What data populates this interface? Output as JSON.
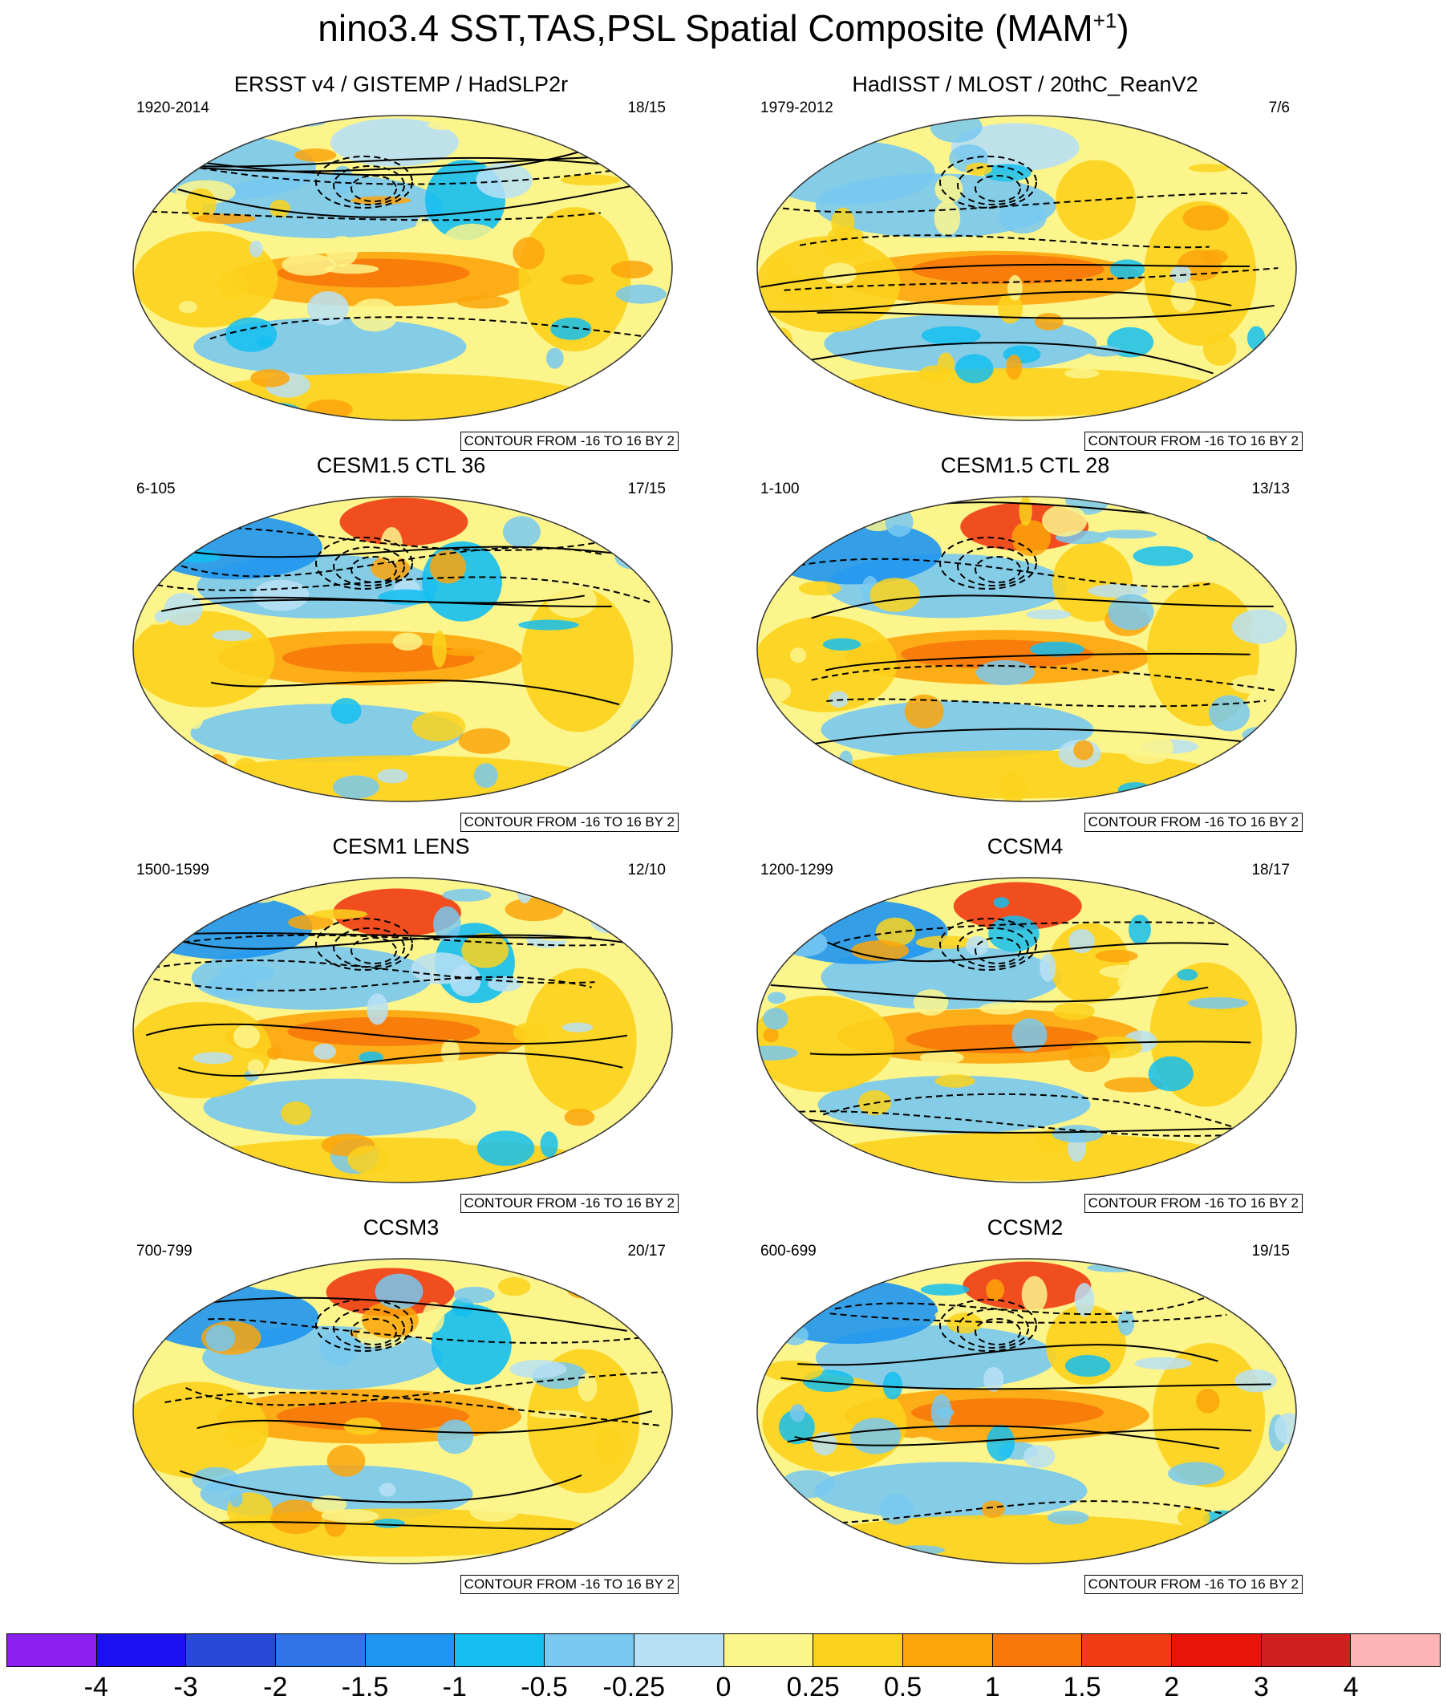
{
  "title": "nino3.4 SST,TAS,PSL Spatial Composite (MAM",
  "title_sup": "+1",
  "title_end": ")",
  "panels": [
    {
      "title": "ERSST v4 / GISTEMP / HadSLP2r",
      "years": "1920-2014",
      "count": "18/15",
      "note": "CONTOUR FROM -16 TO 16 BY 2"
    },
    {
      "title": "HadISST / MLOST / 20thC_ReanV2",
      "years": "1979-2012",
      "count": "7/6",
      "note": "CONTOUR FROM -16 TO 16 BY 2"
    },
    {
      "title": "CESM1.5 CTL 36",
      "years": "6-105",
      "count": "17/15",
      "note": "CONTOUR FROM -16 TO 16 BY 2"
    },
    {
      "title": "CESM1.5 CTL 28",
      "years": "1-100",
      "count": "13/13",
      "note": "CONTOUR FROM -16 TO 16 BY 2"
    },
    {
      "title": "CESM1 LENS",
      "years": "1500-1599",
      "count": "12/10",
      "note": "CONTOUR FROM -16 TO 16 BY 2"
    },
    {
      "title": "CCSM4",
      "years": "1200-1299",
      "count": "18/17",
      "note": "CONTOUR FROM -16 TO 16 BY 2"
    },
    {
      "title": "CCSM3",
      "years": "700-799",
      "count": "20/17",
      "note": "CONTOUR FROM -16 TO 16 BY 2"
    },
    {
      "title": "CCSM2",
      "years": "600-699",
      "count": "19/15",
      "note": "CONTOUR FROM -16 TO 16 BY 2"
    }
  ],
  "colorbar": {
    "labels": [
      "-4",
      "-3",
      "-2",
      "-1.5",
      "-1",
      "-0.5",
      "-0.25",
      "0",
      "0.25",
      "0.5",
      "1",
      "1.5",
      "2",
      "3",
      "4"
    ],
    "colors": [
      "#8a1ff0",
      "#1a10f0",
      "#2848d8",
      "#2e73e8",
      "#1e96f0",
      "#14bef0",
      "#78c8f0",
      "#b8e0f4",
      "#fcf58c",
      "#fcd21c",
      "#fca50a",
      "#f8780a",
      "#f03c14",
      "#e8140a",
      "#d02020",
      "#fcb4b4"
    ]
  }
}
